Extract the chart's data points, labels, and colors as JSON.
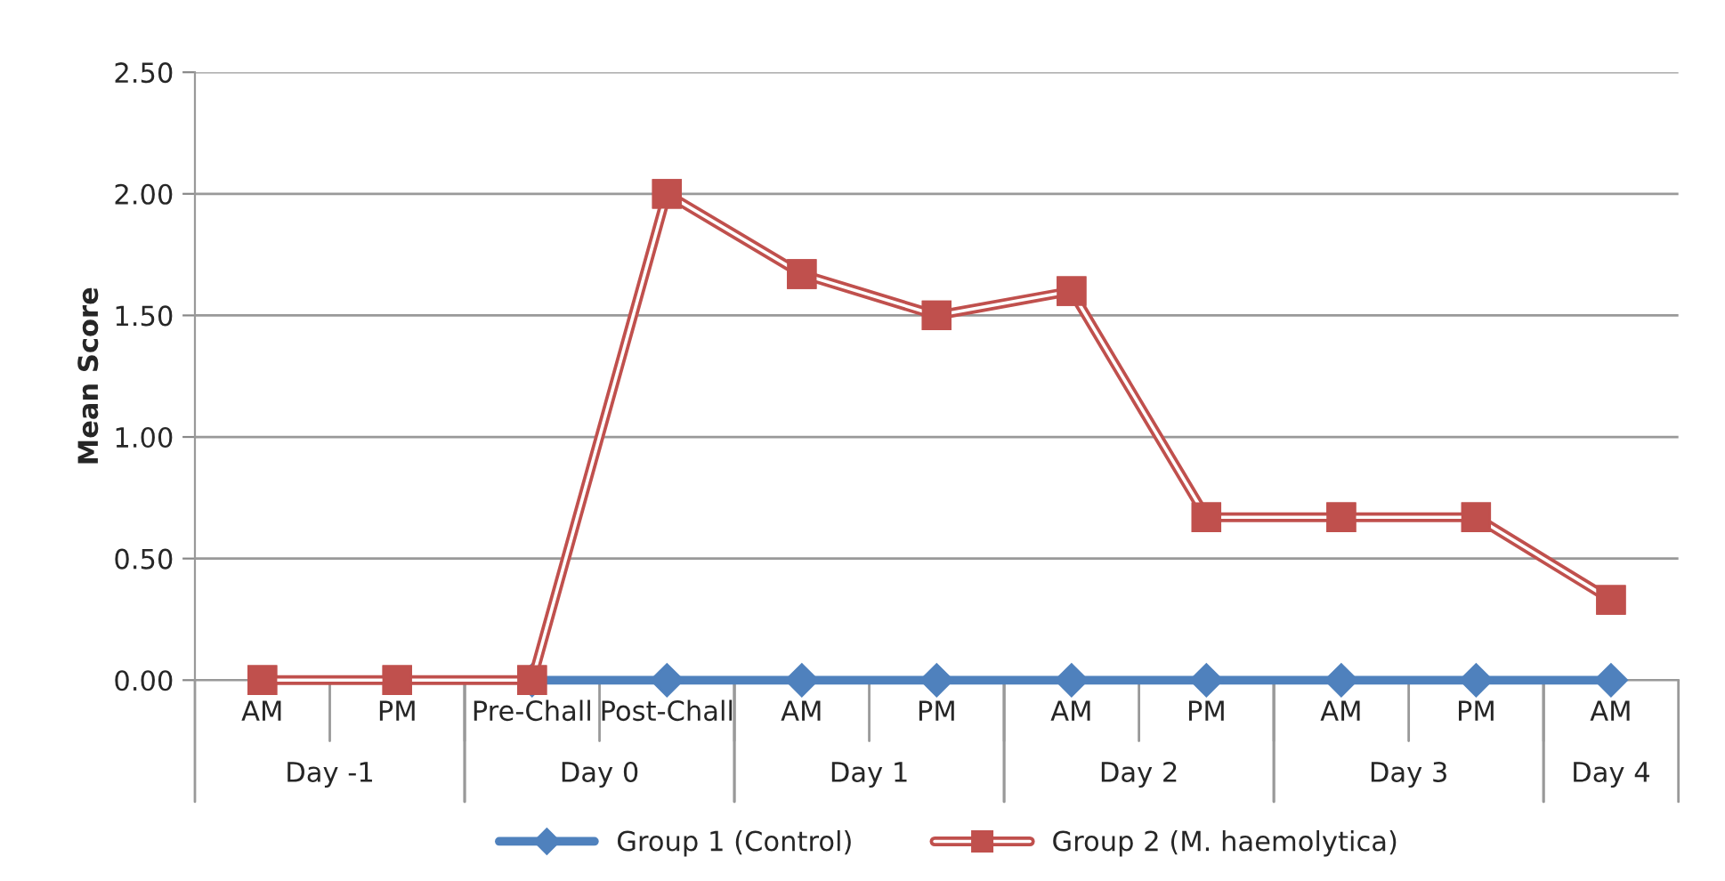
{
  "chart_data": {
    "type": "line",
    "ylabel": "Mean Score",
    "categories": [
      "AM",
      "PM",
      "Pre-Chall",
      "Post-Chall",
      "AM",
      "PM",
      "AM",
      "PM",
      "AM",
      "PM",
      "AM"
    ],
    "ylim": [
      0,
      2.5
    ],
    "yticks": [
      {
        "value": 0,
        "label": "0.00"
      },
      {
        "value": 0.5,
        "label": "0.50"
      },
      {
        "value": 1,
        "label": "1.00"
      },
      {
        "value": 1.5,
        "label": "1.50"
      },
      {
        "value": 2,
        "label": "2.00"
      },
      {
        "value": 2.5,
        "label": "2.50"
      }
    ],
    "annotations": [
      "Day -1",
      "Day 0",
      "Day 1",
      "Day 2",
      "Day 3",
      "Day 4"
    ],
    "series": [
      {
        "name": "Group 1 (Control)",
        "color": "#4f81bd",
        "marker": "diamond",
        "values": [
          null,
          null,
          0,
          0,
          0,
          0,
          0,
          0,
          0,
          0,
          0
        ]
      },
      {
        "name": "Group 2 (M. haemolytica)",
        "color": "#c0504d",
        "marker": "square",
        "values": [
          0,
          0,
          0,
          2.0,
          1.67,
          1.5,
          1.6,
          0.67,
          0.67,
          0.67,
          0.33
        ]
      }
    ],
    "grid": "y",
    "legend": "bottom",
    "line_style": "solid"
  }
}
